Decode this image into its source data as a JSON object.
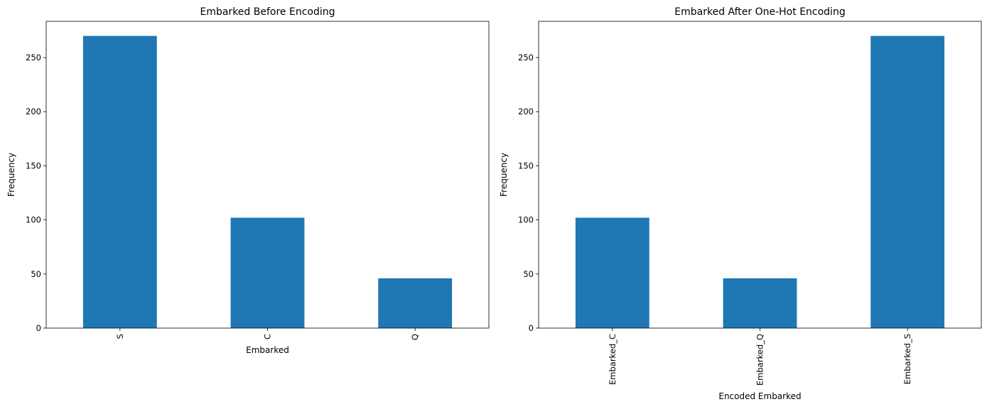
{
  "chart_data": [
    {
      "type": "bar",
      "title": "Embarked Before Encoding",
      "xlabel": "Embarked",
      "ylabel": "Frequency",
      "categories": [
        "S",
        "C",
        "Q"
      ],
      "values": [
        270,
        102,
        46
      ],
      "ylim": [
        0,
        283.5
      ],
      "yticks": [
        0,
        50,
        100,
        150,
        200,
        250
      ],
      "bar_color": "#1f77b4",
      "grid": false
    },
    {
      "type": "bar",
      "title": "Embarked After One-Hot Encoding",
      "xlabel": "Encoded Embarked",
      "ylabel": "Frequency",
      "categories": [
        "Embarked_C",
        "Embarked_Q",
        "Embarked_S"
      ],
      "values": [
        102,
        46,
        270
      ],
      "ylim": [
        0,
        283.5
      ],
      "yticks": [
        0,
        50,
        100,
        150,
        200,
        250
      ],
      "bar_color": "#1f77b4",
      "grid": false
    }
  ]
}
